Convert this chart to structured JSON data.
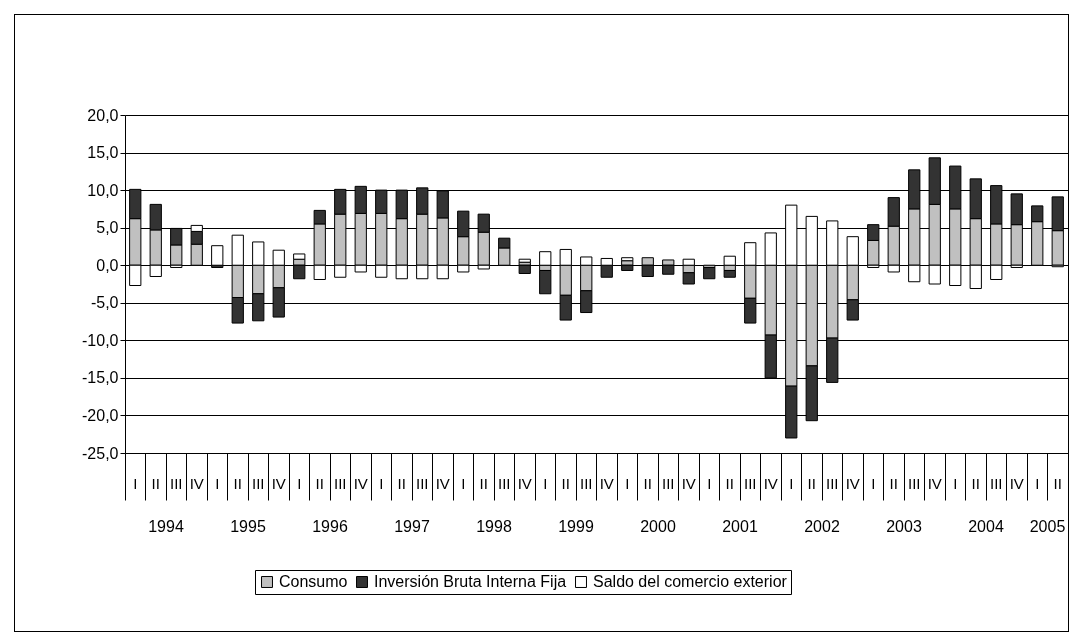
{
  "chart_data": {
    "type": "bar",
    "stacked": true,
    "categories": [
      "I",
      "II",
      "III",
      "IV",
      "I",
      "II",
      "III",
      "IV",
      "I",
      "II",
      "III",
      "IV",
      "I",
      "II",
      "III",
      "IV",
      "I",
      "II",
      "III",
      "IV",
      "I",
      "II",
      "III",
      "IV",
      "I",
      "II",
      "III",
      "IV",
      "I",
      "II",
      "III",
      "IV",
      "I",
      "II",
      "III",
      "IV",
      "I",
      "II",
      "III",
      "IV",
      "I",
      "II",
      "III",
      "IV",
      "I",
      "II"
    ],
    "series": [
      {
        "name": "Consumo",
        "color": "#c0c0c0",
        "values": [
          6.2,
          4.7,
          2.7,
          2.8,
          0,
          -4.3,
          -3.8,
          -3.0,
          0.8,
          5.5,
          6.8,
          6.9,
          6.9,
          6.2,
          6.8,
          6.3,
          3.8,
          4.4,
          2.3,
          0.4,
          -0.7,
          -4.0,
          -3.4,
          null,
          0.6,
          1.0,
          0.7,
          -1.0,
          -0.3,
          -0.7,
          -4.4,
          -9.3,
          -16.1,
          -13.4,
          -9.7,
          -4.6,
          3.3,
          5.2,
          7.5,
          8.1,
          7.5,
          6.2,
          5.5,
          5.4,
          5.8,
          4.6
        ]
      },
      {
        "name": "Inversión Bruta Interna Fija",
        "color": "#333333",
        "values": [
          3.9,
          3.4,
          2.2,
          1.7,
          -0.3,
          -3.4,
          -3.6,
          -3.9,
          -1.8,
          1.8,
          3.3,
          3.6,
          3.1,
          3.8,
          3.5,
          3.6,
          3.4,
          2.4,
          1.3,
          -1.1,
          -3.1,
          -3.3,
          -2.9,
          -1.6,
          -0.7,
          -1.5,
          -1.2,
          -1.5,
          -1.5,
          -0.9,
          -3.3,
          -5.7,
          -6.9,
          -7.3,
          -5.9,
          -2.7,
          2.1,
          3.8,
          5.2,
          6.2,
          5.7,
          5.3,
          5.1,
          4.1,
          2.1,
          4.5
        ]
      },
      {
        "name": "Saldo del comercio exterior",
        "color": "#ffffff",
        "values": [
          -2.7,
          -1.5,
          -0.3,
          0.8,
          2.6,
          4.0,
          3.1,
          2.0,
          0.7,
          -1.9,
          -1.6,
          -0.9,
          -1.6,
          -1.8,
          -1.8,
          -1.8,
          -0.9,
          -0.5,
          0,
          0.4,
          1.8,
          2.1,
          1.1,
          0.9,
          0.4,
          0,
          0,
          0.8,
          0,
          1.2,
          3.0,
          4.3,
          8.0,
          6.5,
          5.9,
          3.8,
          -0.3,
          -0.9,
          -2.2,
          -2.5,
          -2.7,
          -3.1,
          -1.9,
          -0.3,
          0,
          -0.2
        ]
      }
    ],
    "ylim": [
      -25,
      20
    ],
    "yticks": [
      {
        "value": -25,
        "label": "-25,0"
      },
      {
        "value": -20,
        "label": "-20,0"
      },
      {
        "value": -15,
        "label": "-15,0"
      },
      {
        "value": -10,
        "label": "-10,0"
      },
      {
        "value": -5,
        "label": "-5,0"
      },
      {
        "value": 0,
        "label": "0,0"
      },
      {
        "value": 5,
        "label": "5,0"
      },
      {
        "value": 10,
        "label": "10,0"
      },
      {
        "value": 15,
        "label": "15,0"
      },
      {
        "value": 20,
        "label": "20,0"
      }
    ],
    "grid": "y",
    "legend": "bottom",
    "annotations": [
      "1994",
      "1995",
      "1996",
      "1997",
      "1998",
      "1999",
      "2000",
      "2001",
      "2002",
      "2003",
      "2004",
      "2005"
    ]
  }
}
